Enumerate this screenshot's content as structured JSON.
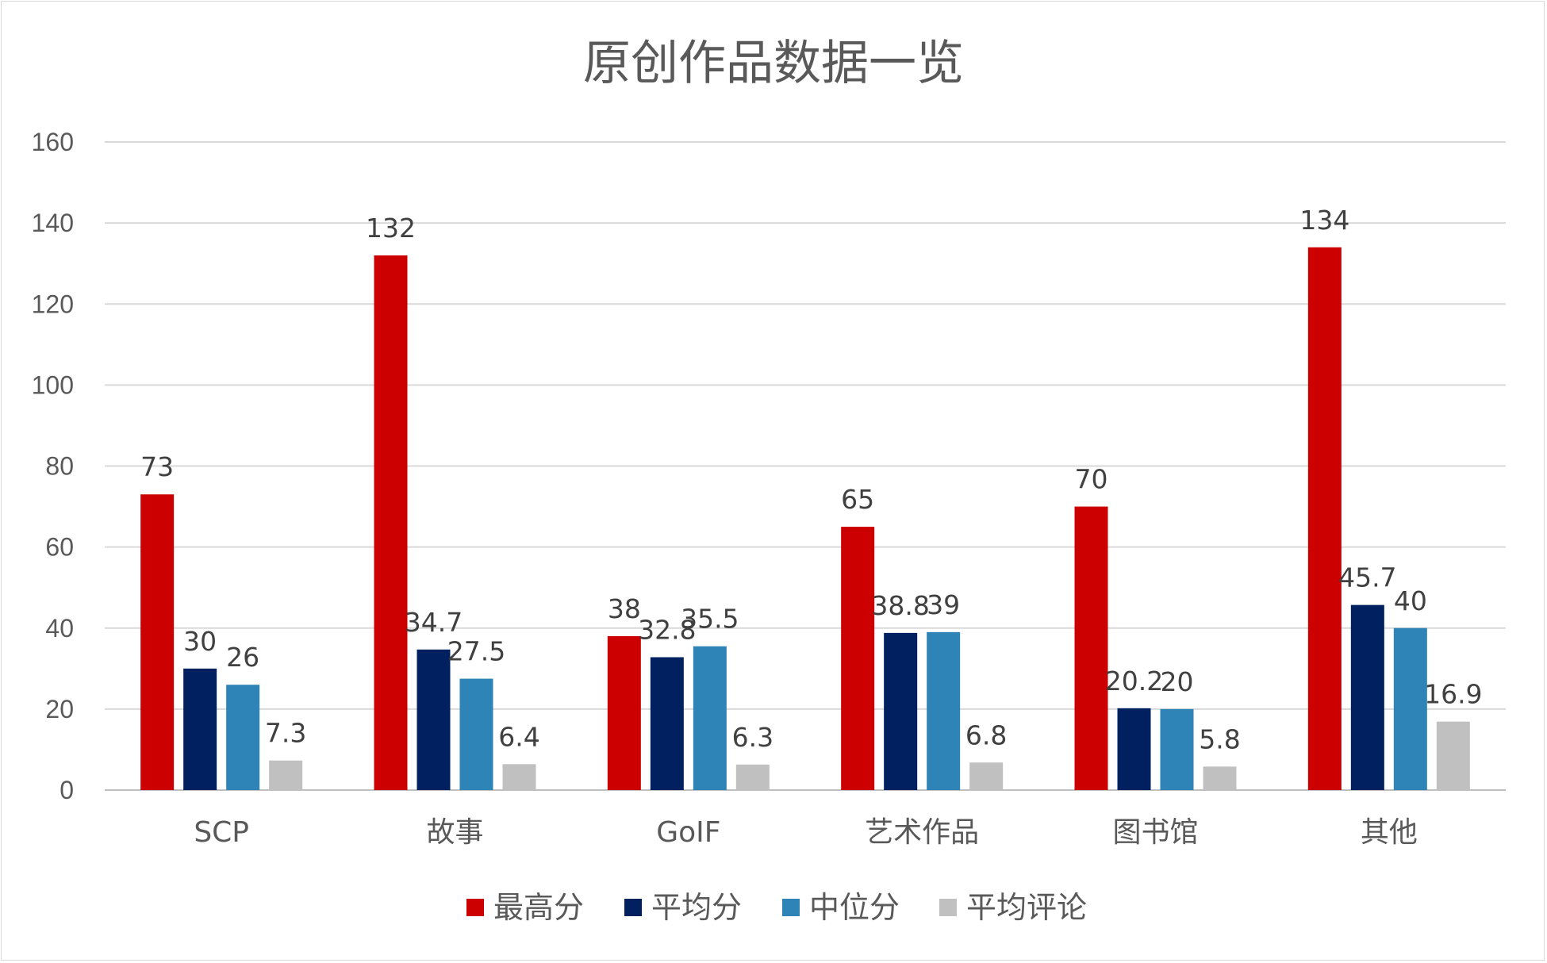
{
  "chart_data": {
    "type": "bar",
    "title": "原创作品数据一览",
    "xlabel": "",
    "ylabel": "",
    "categories": [
      "SCP",
      "故事",
      "GoIF",
      "艺术作品",
      "图书馆",
      "其他"
    ],
    "series": [
      {
        "name": "最高分",
        "color": "#cc0000",
        "values": [
          73,
          132,
          38,
          65,
          70,
          134
        ]
      },
      {
        "name": "平均分",
        "color": "#002060",
        "values": [
          30,
          34.7,
          32.8,
          38.8,
          20.2,
          45.7
        ]
      },
      {
        "name": "中位分",
        "color": "#2e83b7",
        "values": [
          26,
          27.5,
          35.5,
          39,
          20,
          40
        ]
      },
      {
        "name": "平均评论",
        "color": "#c0c0c0",
        "values": [
          7.3,
          6.4,
          6.3,
          6.8,
          5.8,
          16.9
        ]
      }
    ],
    "ylim": [
      0,
      160
    ],
    "yticks": [
      0,
      20,
      40,
      60,
      80,
      100,
      120,
      140,
      160
    ],
    "grid": true,
    "legend_position": "bottom"
  }
}
